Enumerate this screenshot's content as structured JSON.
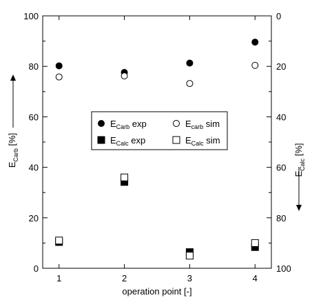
{
  "chart_data": {
    "type": "scatter",
    "title": "",
    "x": [
      1,
      2,
      3,
      4
    ],
    "xlim": [
      0.75,
      4.25
    ],
    "xticks": [
      1,
      2,
      3,
      4
    ],
    "xticklabels": [
      "1",
      "2",
      "3",
      "4"
    ],
    "xlabel": "operation point [-]",
    "ylim": [
      0,
      100
    ],
    "yticks": [
      0,
      20,
      40,
      60,
      80,
      100
    ],
    "yticklabels": [
      "0",
      "20",
      "40",
      "60",
      "80",
      "100"
    ],
    "ylabel": {
      "main": "E",
      "sub": "Carb",
      "unit": " [%]"
    },
    "y2lim": [
      100,
      0
    ],
    "y2ticks": [
      0,
      20,
      40,
      60,
      80,
      100
    ],
    "y2ticklabels": [
      "0",
      "20",
      "40",
      "60",
      "80",
      "100"
    ],
    "y2label": {
      "main": "E",
      "sub": "Calc",
      "unit": " [%]"
    },
    "grid": false,
    "legend_position": "center",
    "series": [
      {
        "name": "E_Carb exp",
        "label_main": "E",
        "label_sub": "Carb",
        "label_rest": " exp",
        "marker": "filled-circle",
        "axis": "left",
        "values": [
          80.2,
          77.6,
          81.3,
          89.6
        ]
      },
      {
        "name": "E_carb sim",
        "label_main": "E",
        "label_sub": "carb",
        "label_rest": " sim",
        "marker": "open-circle",
        "axis": "left",
        "values": [
          75.8,
          76.2,
          73.2,
          80.4
        ]
      },
      {
        "name": "E_Calc exp",
        "label_main": "E",
        "label_sub": "Calc",
        "label_rest": " exp",
        "marker": "filled-square",
        "axis": "right",
        "values": [
          89.6,
          65.8,
          93.6,
          91.6
        ]
      },
      {
        "name": "E_Calc sim",
        "label_main": "E",
        "label_sub": "Calc",
        "label_rest": " sim",
        "marker": "open-square",
        "axis": "right",
        "values": [
          89.0,
          64.0,
          95.0,
          90.0
        ]
      }
    ]
  }
}
